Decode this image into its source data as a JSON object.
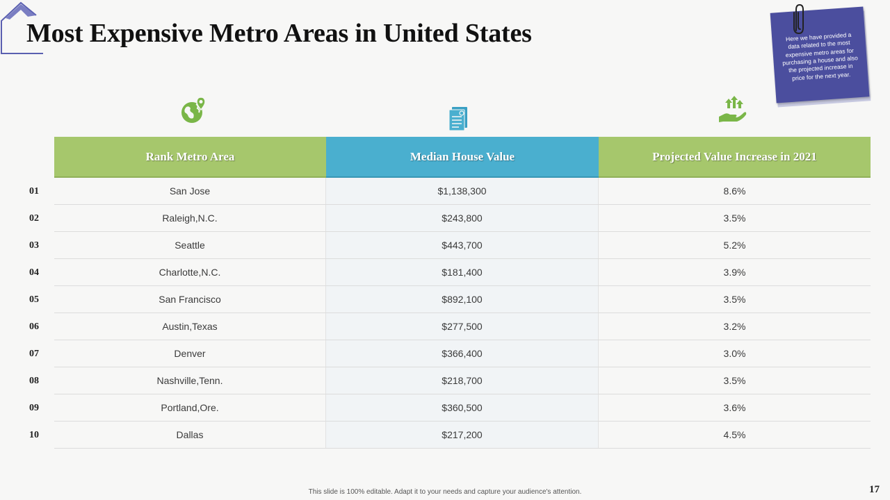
{
  "slide": {
    "title": "Most Expensive Metro Areas in United States",
    "note": "Here we have provided a data related to the most expensive metro areas for purchasing a house and also the projected increase in price for the next year.",
    "footer": "This slide is 100% editable. Adapt it to your needs and capture your audience's attention.",
    "page_number": "17"
  },
  "colors": {
    "green_header": "#a6c76c",
    "blue_header": "#4aafcf",
    "note_bg": "#4b4e9e",
    "house_outline": "#5a5fb0"
  },
  "icons": [
    "globe-pin-icon",
    "document-icon",
    "hand-growth-icon"
  ],
  "table": {
    "headers": [
      "Rank Metro Area",
      "Median House Value",
      "Projected Value Increase in 2021"
    ],
    "rows": [
      {
        "rank": "01",
        "area": "San Jose",
        "value": "$1,138,300",
        "increase": "8.6%"
      },
      {
        "rank": "02",
        "area": "Raleigh,N.C.",
        "value": "$243,800",
        "increase": "3.5%"
      },
      {
        "rank": "03",
        "area": "Seattle",
        "value": "$443,700",
        "increase": "5.2%"
      },
      {
        "rank": "04",
        "area": "Charlotte,N.C.",
        "value": "$181,400",
        "increase": "3.9%"
      },
      {
        "rank": "05",
        "area": "San Francisco",
        "value": "$892,100",
        "increase": "3.5%"
      },
      {
        "rank": "06",
        "area": "Austin,Texas",
        "value": "$277,500",
        "increase": "3.2%"
      },
      {
        "rank": "07",
        "area": "Denver",
        "value": "$366,400",
        "increase": "3.0%"
      },
      {
        "rank": "08",
        "area": "Nashville,Tenn.",
        "value": "$218,700",
        "increase": "3.5%"
      },
      {
        "rank": "09",
        "area": "Portland,Ore.",
        "value": "$360,500",
        "increase": "3.6%"
      },
      {
        "rank": "10",
        "area": "Dallas",
        "value": "$217,200",
        "increase": "4.5%"
      }
    ]
  }
}
